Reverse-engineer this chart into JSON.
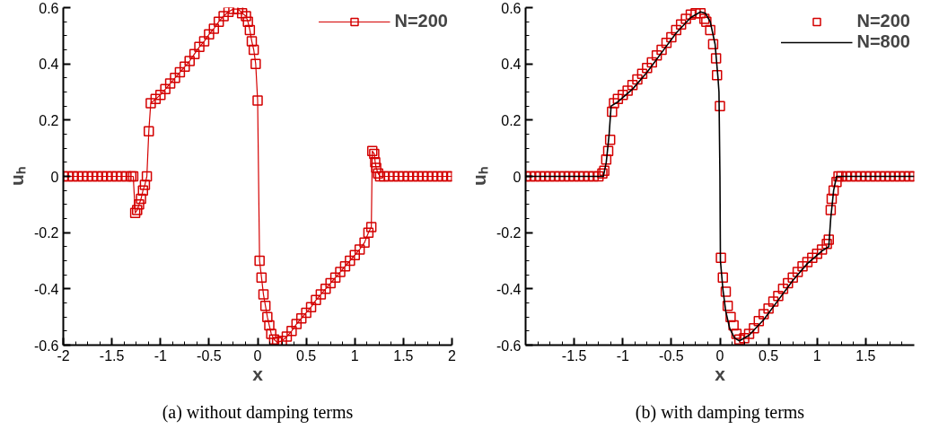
{
  "chart_data": [
    {
      "type": "line",
      "xlabel": "x",
      "ylabel": "uₕ",
      "annotations": [
        "(a) without damping terms"
      ],
      "xlim": [
        -2,
        2
      ],
      "ylim": [
        -0.6,
        0.6
      ],
      "xticks": [
        -2,
        -1.5,
        -1,
        -0.5,
        0,
        0.5,
        1,
        1.5,
        2
      ],
      "yticks": [
        -0.6,
        -0.4,
        -0.2,
        0,
        0.2,
        0.4,
        0.6
      ],
      "grid": false,
      "legend": "top right",
      "marker": "square",
      "line_style": "solid",
      "series": [
        {
          "name": "N=200",
          "color": "#d40000",
          "x": [
            -2,
            -1.95,
            -1.9,
            -1.85,
            -1.8,
            -1.75,
            -1.7,
            -1.65,
            -1.6,
            -1.55,
            -1.5,
            -1.45,
            -1.4,
            -1.35,
            -1.3,
            -1.28,
            -1.26,
            -1.24,
            -1.22,
            -1.2,
            -1.18,
            -1.16,
            -1.14,
            -1.12,
            -1.1,
            -1.05,
            -1.0,
            -0.95,
            -0.9,
            -0.85,
            -0.8,
            -0.75,
            -0.7,
            -0.65,
            -0.6,
            -0.55,
            -0.5,
            -0.45,
            -0.4,
            -0.35,
            -0.3,
            -0.25,
            -0.2,
            -0.16,
            -0.12,
            -0.1,
            -0.08,
            -0.06,
            -0.04,
            -0.02,
            0.0,
            0.02,
            0.04,
            0.06,
            0.08,
            0.1,
            0.12,
            0.14,
            0.17,
            0.2,
            0.25,
            0.3,
            0.35,
            0.4,
            0.45,
            0.5,
            0.55,
            0.6,
            0.65,
            0.7,
            0.75,
            0.8,
            0.85,
            0.9,
            0.95,
            1.0,
            1.05,
            1.1,
            1.14,
            1.17,
            1.18,
            1.2,
            1.21,
            1.22,
            1.24,
            1.26,
            1.3,
            1.35,
            1.4,
            1.45,
            1.5,
            1.55,
            1.6,
            1.65,
            1.7,
            1.75,
            1.8,
            1.85,
            1.9,
            1.95,
            2.0
          ],
          "values": [
            0,
            0,
            0,
            0,
            0,
            0,
            0,
            0,
            0,
            0,
            0,
            0,
            0,
            0,
            0,
            0,
            -0.13,
            -0.12,
            -0.1,
            -0.08,
            -0.05,
            -0.03,
            0.0,
            0.16,
            0.26,
            0.275,
            0.29,
            0.31,
            0.33,
            0.35,
            0.37,
            0.39,
            0.41,
            0.435,
            0.46,
            0.48,
            0.505,
            0.525,
            0.55,
            0.57,
            0.585,
            0.595,
            0.595,
            0.58,
            0.57,
            0.55,
            0.52,
            0.48,
            0.45,
            0.4,
            0.27,
            -0.3,
            -0.36,
            -0.42,
            -0.46,
            -0.5,
            -0.53,
            -0.56,
            -0.58,
            -0.59,
            -0.585,
            -0.57,
            -0.55,
            -0.525,
            -0.505,
            -0.485,
            -0.465,
            -0.44,
            -0.42,
            -0.4,
            -0.38,
            -0.36,
            -0.34,
            -0.32,
            -0.3,
            -0.28,
            -0.26,
            -0.235,
            -0.2,
            -0.18,
            0.09,
            0.08,
            0.05,
            0.03,
            0.01,
            0,
            0,
            0,
            0,
            0,
            0,
            0,
            0,
            0,
            0,
            0,
            0,
            0,
            0,
            0,
            0
          ]
        }
      ]
    },
    {
      "type": "line",
      "xlabel": "x",
      "ylabel": "uₕ",
      "annotations": [
        "(b) with damping terms"
      ],
      "xlim": [
        -2,
        2
      ],
      "ylim": [
        -0.6,
        0.6
      ],
      "xticks": [
        -1.5,
        -1,
        -0.5,
        0,
        0.5,
        1,
        1.5
      ],
      "yticks": [
        -0.6,
        -0.4,
        -0.2,
        0,
        0.2,
        0.4,
        0.6
      ],
      "grid": false,
      "legend": "top right",
      "marker": "square",
      "series": [
        {
          "name": "N=200",
          "type": "scatter",
          "color": "#d40000",
          "x": [
            -2,
            -1.95,
            -1.9,
            -1.85,
            -1.8,
            -1.75,
            -1.7,
            -1.65,
            -1.6,
            -1.55,
            -1.5,
            -1.45,
            -1.4,
            -1.35,
            -1.3,
            -1.25,
            -1.21,
            -1.19,
            -1.17,
            -1.15,
            -1.13,
            -1.11,
            -1.09,
            -1.05,
            -1.0,
            -0.95,
            -0.9,
            -0.85,
            -0.8,
            -0.75,
            -0.7,
            -0.65,
            -0.6,
            -0.55,
            -0.5,
            -0.45,
            -0.4,
            -0.35,
            -0.3,
            -0.25,
            -0.2,
            -0.16,
            -0.14,
            -0.1,
            -0.07,
            -0.04,
            -0.03,
            0.0,
            0.01,
            0.03,
            0.06,
            0.08,
            0.11,
            0.14,
            0.17,
            0.2,
            0.25,
            0.3,
            0.35,
            0.4,
            0.45,
            0.5,
            0.55,
            0.6,
            0.65,
            0.7,
            0.75,
            0.8,
            0.85,
            0.9,
            0.95,
            1.0,
            1.05,
            1.1,
            1.12,
            1.14,
            1.15,
            1.17,
            1.2,
            1.22,
            1.25,
            1.3,
            1.35,
            1.4,
            1.45,
            1.5,
            1.55,
            1.6,
            1.65,
            1.7,
            1.75,
            1.8,
            1.85,
            1.9,
            1.95,
            2.0
          ],
          "values": [
            0,
            0,
            0,
            0,
            0,
            0,
            0,
            0,
            0,
            0,
            0,
            0,
            0,
            0,
            0,
            0,
            0.01,
            0.02,
            0.06,
            0.09,
            0.13,
            0.23,
            0.26,
            0.275,
            0.29,
            0.305,
            0.325,
            0.345,
            0.365,
            0.385,
            0.405,
            0.43,
            0.45,
            0.475,
            0.495,
            0.52,
            0.54,
            0.56,
            0.575,
            0.58,
            0.58,
            0.56,
            0.55,
            0.52,
            0.47,
            0.42,
            0.36,
            0.25,
            -0.29,
            -0.36,
            -0.41,
            -0.46,
            -0.5,
            -0.53,
            -0.56,
            -0.58,
            -0.575,
            -0.56,
            -0.54,
            -0.515,
            -0.49,
            -0.47,
            -0.445,
            -0.425,
            -0.4,
            -0.38,
            -0.36,
            -0.34,
            -0.32,
            -0.305,
            -0.29,
            -0.275,
            -0.26,
            -0.24,
            -0.225,
            -0.12,
            -0.08,
            -0.05,
            -0.02,
            0,
            0,
            0,
            0,
            0,
            0,
            0,
            0,
            0,
            0,
            0,
            0,
            0,
            0,
            0,
            0,
            0
          ]
        },
        {
          "name": "N=800",
          "color": "#000000",
          "marker": "none",
          "line_style": "solid",
          "x": [
            -2,
            -1.2,
            -1.17,
            -1.14,
            -1.12,
            -1.05,
            -0.9,
            -0.75,
            -0.6,
            -0.45,
            -0.3,
            -0.2,
            -0.15,
            -0.1,
            -0.05,
            -0.02,
            -0.01,
            0.0,
            0.005,
            0.03,
            0.06,
            0.1,
            0.15,
            0.2,
            0.3,
            0.45,
            0.6,
            0.75,
            0.9,
            1.05,
            1.12,
            1.14,
            1.17,
            1.2,
            2
          ],
          "values": [
            0,
            0,
            0.05,
            0.15,
            0.25,
            0.265,
            0.31,
            0.37,
            0.44,
            0.51,
            0.565,
            0.585,
            0.58,
            0.55,
            0.47,
            0.35,
            0.3,
            0.0,
            -0.3,
            -0.4,
            -0.48,
            -0.54,
            -0.575,
            -0.585,
            -0.565,
            -0.51,
            -0.44,
            -0.37,
            -0.31,
            -0.265,
            -0.25,
            -0.15,
            -0.05,
            0,
            0
          ]
        }
      ]
    }
  ]
}
